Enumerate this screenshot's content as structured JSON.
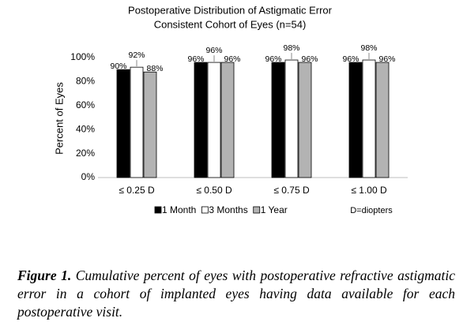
{
  "chart_data": {
    "type": "bar",
    "title": "Postoperative Distribution of Astigmatic Error",
    "subtitle": "Consistent Cohort of Eyes (n=54)",
    "y_label": "Percent of Eyes",
    "categories": [
      "≤ 0.25 D",
      "≤ 0.50 D",
      "≤ 0.75 D",
      "≤ 1.00 D"
    ],
    "series": [
      {
        "name": "1 Month",
        "color": "#000000",
        "values": [
          90,
          96,
          96,
          96
        ],
        "value_labels": [
          "90%",
          "96%",
          "96%",
          "96%"
        ]
      },
      {
        "name": "3 Months",
        "color": "#ffffff",
        "values": [
          92,
          96,
          98,
          98
        ],
        "value_labels": [
          "92%",
          "96%",
          "98%",
          "98%"
        ]
      },
      {
        "name": "1 Year",
        "color": "#b3b3b3",
        "values": [
          88,
          96,
          96,
          96
        ],
        "value_labels": [
          "88%",
          "96%",
          "96%",
          "96%"
        ]
      }
    ],
    "ylim": [
      0,
      100
    ],
    "yticks": [
      {
        "value": 0,
        "label": "0%"
      },
      {
        "value": 20,
        "label": "20%"
      },
      {
        "value": 40,
        "label": "40%"
      },
      {
        "value": 60,
        "label": "60%"
      },
      {
        "value": 80,
        "label": "80%"
      },
      {
        "value": 100,
        "label": "100%"
      }
    ],
    "annotation": "D=diopters",
    "legend": "bottom",
    "grid": false
  },
  "caption": {
    "label": "Figure 1.",
    "text": "Cumulative percent of eyes with postoperative refractive astigmatic error in a cohort of implanted eyes having data available for each postoperative visit."
  }
}
